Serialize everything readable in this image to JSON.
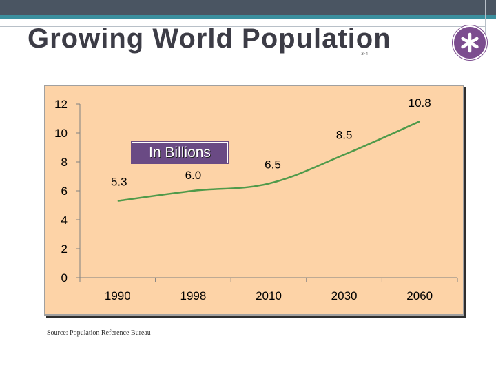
{
  "slide": {
    "title": "Growing World Population",
    "slide_number": "3-4",
    "source": "Source: Population Reference Bureau",
    "badge_icon": "asterisk-icon",
    "colors": {
      "top_band": "#4a5562",
      "accent_teal": "#3b8f9e",
      "badge": "#7c4d8f",
      "chart_bg": "#fdd3a7",
      "line": "#4f9a4a"
    }
  },
  "chart_data": {
    "type": "line",
    "categories": [
      "1990",
      "1998",
      "2010",
      "2030",
      "2060"
    ],
    "series": [
      {
        "values": [
          5.3,
          6.0,
          6.5,
          8.5,
          10.8
        ]
      }
    ],
    "data_labels": [
      "5.3",
      "6.0",
      "6.5",
      "8.5",
      "10.8"
    ],
    "y_ticks": [
      "0",
      "2",
      "4",
      "6",
      "8",
      "10",
      "12"
    ],
    "ylim": [
      0,
      12
    ],
    "annotation": "In Billions",
    "grid": false,
    "line_color": "#4f9a4a"
  }
}
